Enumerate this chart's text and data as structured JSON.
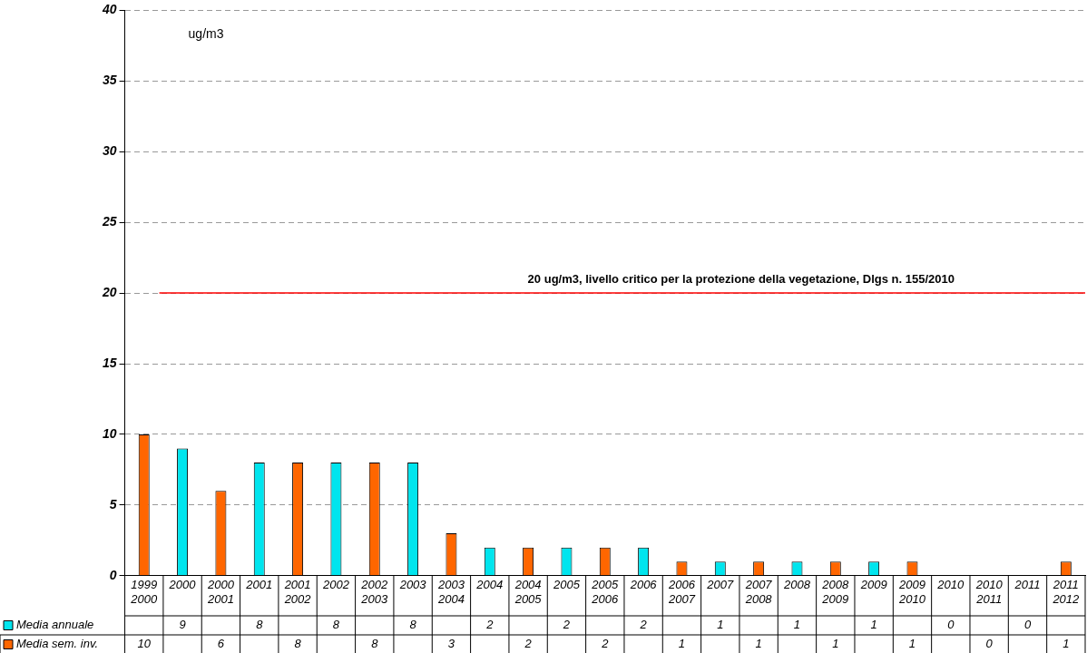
{
  "chart_data": {
    "type": "bar",
    "categories": [
      "1999\n2000",
      "2000",
      "2000\n2001",
      "2001",
      "2001\n2002",
      "2002",
      "2002\n2003",
      "2003",
      "2003\n2004",
      "2004",
      "2004\n2005",
      "2005",
      "2005\n2006",
      "2006",
      "2006\n2007",
      "2007",
      "2007\n2008",
      "2008",
      "2008\n2009",
      "2009",
      "2009\n2010",
      "2010",
      "2010\n2011",
      "2011",
      "2011\n2012"
    ],
    "series": [
      {
        "name": "Media annuale",
        "color": "#00e5ee",
        "values": [
          null,
          9,
          null,
          8,
          null,
          8,
          null,
          8,
          null,
          2,
          null,
          2,
          null,
          2,
          null,
          1,
          null,
          1,
          null,
          1,
          null,
          0,
          null,
          0,
          null
        ]
      },
      {
        "name": "Media sem. inv.",
        "color": "#ff6600",
        "values": [
          10,
          null,
          6,
          null,
          8,
          null,
          8,
          null,
          3,
          null,
          2,
          null,
          2,
          null,
          1,
          null,
          1,
          null,
          1,
          null,
          1,
          null,
          0,
          null,
          1
        ]
      }
    ],
    "ylim": [
      0,
      40
    ],
    "yticks": [
      0,
      5,
      10,
      15,
      20,
      25,
      30,
      35,
      40
    ],
    "grid": "y",
    "ref_lines": [
      {
        "axis": "y",
        "value": 20,
        "label": "20 ug/m3, livello critico per la protezione della vegetazione, Dlgs n. 155/2010",
        "color": "#ff0000"
      }
    ],
    "annotations": [
      "ug/m3"
    ],
    "data_labels": true,
    "legend": "bottom left"
  }
}
